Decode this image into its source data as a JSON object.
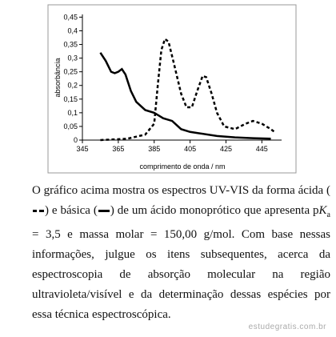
{
  "chart_data": {
    "type": "line",
    "x_label": "comprimento de onda / nm",
    "y_label": "absorbância",
    "xlim": [
      345,
      456
    ],
    "ylim": [
      0,
      0.46
    ],
    "xticks": [
      345,
      365,
      385,
      405,
      425,
      445
    ],
    "yticks": [
      0,
      {
        "value": 0.05,
        "label": "0,05"
      },
      {
        "value": 0.1,
        "label": "0,1"
      },
      {
        "value": 0.15,
        "label": "0,15"
      },
      {
        "value": 0.2,
        "label": "0,2"
      },
      {
        "value": 0.25,
        "label": "0,25"
      },
      {
        "value": 0.3,
        "label": "0,3"
      },
      {
        "value": 0.35,
        "label": "0,35"
      },
      {
        "value": 0.4,
        "label": "0,4"
      },
      {
        "value": 0.45,
        "label": "0,45"
      }
    ],
    "series": [
      {
        "color": "#000000",
        "dashed": false,
        "x": [
          355,
          358,
          361,
          363,
          365,
          367,
          369,
          372,
          375,
          380,
          385,
          390,
          395,
          400,
          405,
          410,
          420,
          430,
          440,
          450
        ],
        "values": [
          0.32,
          0.29,
          0.25,
          0.245,
          0.25,
          0.26,
          0.24,
          0.18,
          0.14,
          0.11,
          0.1,
          0.08,
          0.07,
          0.04,
          0.03,
          0.025,
          0.015,
          0.01,
          0.007,
          0.005
        ]
      },
      {
        "color": "#000000",
        "dashed": true,
        "x": [
          355,
          370,
          380,
          385,
          387,
          389,
          391,
          393,
          396,
          400,
          403,
          406,
          409,
          412,
          414,
          417,
          420,
          424,
          430,
          436,
          440,
          445,
          450,
          452
        ],
        "values": [
          0,
          0.005,
          0.02,
          0.06,
          0.2,
          0.33,
          0.37,
          0.36,
          0.28,
          0.17,
          0.12,
          0.12,
          0.18,
          0.235,
          0.23,
          0.17,
          0.1,
          0.05,
          0.04,
          0.06,
          0.07,
          0.06,
          0.04,
          0.03
        ]
      }
    ]
  },
  "text": {
    "p1": "O gráfico acima mostra os espectros UV-VIS da forma ácida (",
    "p2": ") e básica (",
    "p3": ") de um ácido monoprótico que apresenta p",
    "k": "K",
    "sub": "a",
    "p4": " = 3,5 e massa molar = 150,00 g/mol. Com base nessas informações, julgue os itens subsequentes, acerca da espectroscopia de absorção molecular na região ultravioleta/visível e da determinação dessas espécies por essa técnica espectroscópica."
  },
  "watermark": "estudegratis.com.br"
}
